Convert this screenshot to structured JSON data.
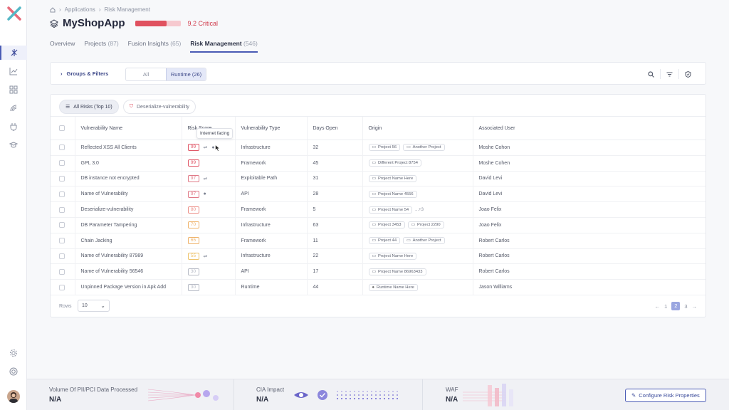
{
  "breadcrumb": {
    "items": [
      "Applications",
      "Risk Management"
    ]
  },
  "app": {
    "name": "MyShopApp",
    "score_text": "9.2 Critical",
    "score_fraction": 0.7,
    "score_color": "#e0515f"
  },
  "tabs": [
    {
      "label": "Overview",
      "count": ""
    },
    {
      "label": "Projects",
      "count": "(87)"
    },
    {
      "label": "Fusion Insights",
      "count": "(65)"
    },
    {
      "label": "Risk Management",
      "count": "(546)",
      "active": true
    }
  ],
  "filterbar": {
    "groups_filters": "Groups & Filters",
    "segments": [
      "All",
      "Runtime (26)"
    ],
    "selected_segment": "Runtime (26)",
    "icons": [
      "search-icon",
      "filter-icon",
      "shield-icon"
    ]
  },
  "chips": [
    {
      "label": "All Risks (Top 10)",
      "selected": true
    },
    {
      "label": "Deserialize-vulnerability",
      "selected": false
    }
  ],
  "table": {
    "columns": [
      "Vulnerability Name",
      "Risk Score",
      "Vulnerability Type",
      "Days Open",
      "Origin",
      "Associated User"
    ],
    "rows": [
      {
        "name": "Reflected XSS All Clients",
        "score": "99",
        "score_color": "#e05767",
        "flags": [
          "network",
          "globe"
        ],
        "type": "Infrastructure",
        "days": "32",
        "origin": [
          "Project 56",
          "Another Project"
        ],
        "more": "",
        "user": "Moshe Cohon"
      },
      {
        "name": "GPL 3.0",
        "score": "99",
        "score_color": "#e05767",
        "flags": [],
        "type": "Framework",
        "days": "45",
        "origin": [
          "Different Project 8754"
        ],
        "more": "",
        "user": "Moshe Cohen"
      },
      {
        "name": "DB instance not encrypted",
        "score": "97",
        "score_color": "#e07a88",
        "flags": [
          "network"
        ],
        "type": "Exploitable Path",
        "days": "31",
        "origin": [
          "Project Name Here"
        ],
        "more": "",
        "user": "David Levi"
      },
      {
        "name": "Name of Vulnerability",
        "score": "97",
        "score_color": "#e07a88",
        "flags": [
          "globe"
        ],
        "type": "API",
        "days": "28",
        "origin": [
          "Project Name 4556"
        ],
        "more": "",
        "user": "David Levi"
      },
      {
        "name": "Deserialize-vulnerability",
        "score": "80",
        "score_color": "#ec8f88",
        "flags": [],
        "type": "Framework",
        "days": "5",
        "origin": [
          "Project Name 54"
        ],
        "more": "...+3",
        "user": "Joao Felix"
      },
      {
        "name": "DB Parameter Tampering",
        "score": "70",
        "score_color": "#efb36a",
        "flags": [],
        "type": "Infrastructure",
        "days": "63",
        "origin": [
          "Project 3453",
          "Project 2290"
        ],
        "more": "",
        "user": "Joao Felix"
      },
      {
        "name": "Chain Jacking",
        "score": "65",
        "score_color": "#efb36a",
        "flags": [],
        "type": "Framework",
        "days": "11",
        "origin": [
          "Project 44",
          "Another Project"
        ],
        "more": "",
        "user": "Robert Carlos"
      },
      {
        "name": "Name of Vulnerability 87989",
        "score": "55",
        "score_color": "#eec36a",
        "flags": [
          "network"
        ],
        "type": "Infrastructure",
        "days": "22",
        "origin": [
          "Project Name Here"
        ],
        "more": "",
        "user": "Robert Carlos"
      },
      {
        "name": "Name of Vulnerability 56546",
        "score": "30",
        "score_color": "#b7bbc6",
        "flags": [],
        "type": "API",
        "days": "17",
        "origin": [
          "Project Name 86963433"
        ],
        "more": "",
        "user": "Robert Carlos"
      },
      {
        "name": "Unpinned Package Version in Apk Add",
        "score": "30",
        "score_color": "#b7bbc6",
        "flags": [],
        "type": "Runtime",
        "days": "44",
        "origin": [
          "Runtime Name Here"
        ],
        "origin_runtime": true,
        "more": "",
        "user": "Jason Williams"
      }
    ]
  },
  "tooltip": "Internet facing",
  "pagination": {
    "rows_label": "Rows",
    "rows_value": "10",
    "pages": [
      "1",
      "2",
      "3"
    ],
    "current": "2"
  },
  "bottom": {
    "pii": {
      "label": "Volume Of PII/PCI Data Processed",
      "value": "N/A"
    },
    "cia": {
      "label": "CIA Impact",
      "value": "N/A"
    },
    "waf": {
      "label": "WAF",
      "value": "N/A"
    },
    "configure": "Configure Risk Properties"
  },
  "accent": "#4a5bb5"
}
